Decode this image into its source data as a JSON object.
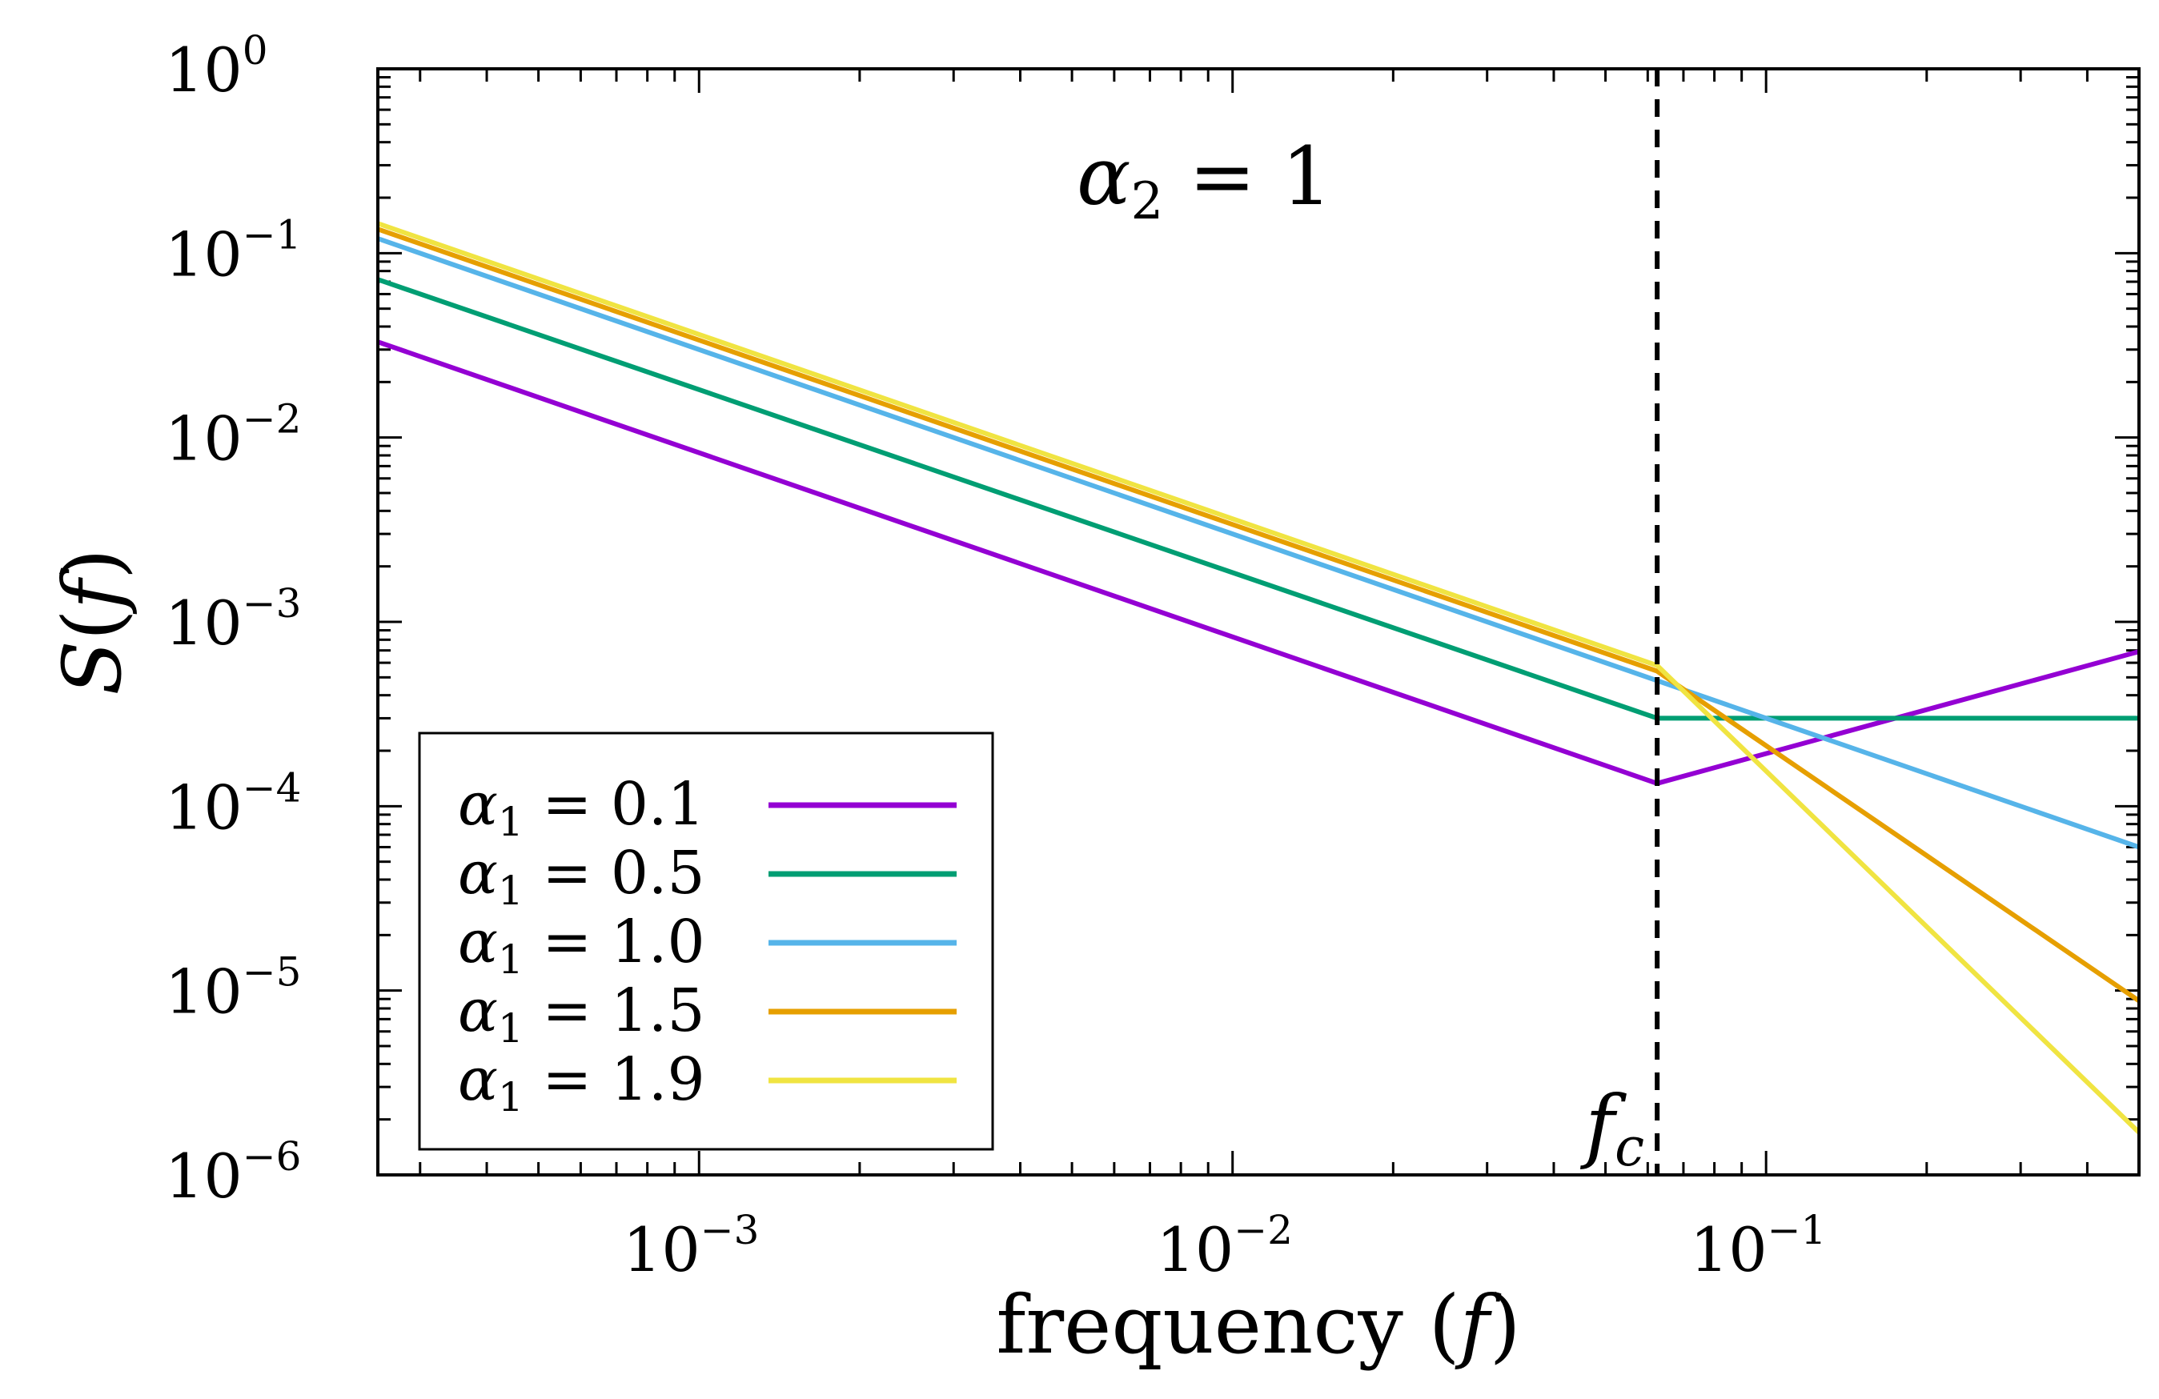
{
  "chart_data": {
    "type": "line",
    "title": "",
    "xlabel": "frequency (f)",
    "ylabel": "S(f)",
    "xscale": "log",
    "yscale": "log",
    "xlim": [
      0.00025,
      0.5
    ],
    "ylim": [
      1e-06,
      1
    ],
    "grid": false,
    "legend_position": "bottom-left",
    "x_ticks": [
      {
        "value": 0.001,
        "base": "10",
        "exp": "−3"
      },
      {
        "value": 0.01,
        "base": "10",
        "exp": "−2"
      },
      {
        "value": 0.1,
        "base": "10",
        "exp": "−1"
      }
    ],
    "y_ticks": [
      {
        "value": 1,
        "base": "10",
        "exp": "0"
      },
      {
        "value": 0.1,
        "base": "10",
        "exp": "−1"
      },
      {
        "value": 0.01,
        "base": "10",
        "exp": "−2"
      },
      {
        "value": 0.001,
        "base": "10",
        "exp": "−3"
      },
      {
        "value": 0.0001,
        "base": "10",
        "exp": "−4"
      },
      {
        "value": 1e-05,
        "base": "10",
        "exp": "−5"
      },
      {
        "value": 1e-06,
        "base": "10",
        "exp": "−6"
      }
    ],
    "cutoff": {
      "x": 0.0625,
      "label": "f",
      "label_sub": "c",
      "style": "dashed",
      "color": "#000000"
    },
    "annotations": [
      {
        "symbol": "α",
        "sub": "2",
        "text": " = 1"
      }
    ],
    "series": [
      {
        "symbol": "α",
        "sub": "1",
        "name": " = 0.1",
        "color": "#9400D3",
        "x": [
          0.00025,
          0.0625,
          0.5
        ],
        "y": [
          0.033,
          0.000133,
          0.00069
        ]
      },
      {
        "symbol": "α",
        "sub": "1",
        "name": " = 0.5",
        "color": "#009E73",
        "x": [
          0.00025,
          0.0625,
          0.5
        ],
        "y": [
          0.072,
          0.0003,
          0.0003
        ]
      },
      {
        "symbol": "α",
        "sub": "1",
        "name": " = 1.0",
        "color": "#56B4E9",
        "x": [
          0.00025,
          0.0625,
          0.5
        ],
        "y": [
          0.12,
          0.00048,
          6e-05
        ]
      },
      {
        "symbol": "α",
        "sub": "1",
        "name": " = 1.5",
        "color": "#E69F00",
        "x": [
          0.00025,
          0.0625,
          0.5
        ],
        "y": [
          0.135,
          0.00054,
          8.8e-06
        ]
      },
      {
        "symbol": "α",
        "sub": "1",
        "name": " = 1.9",
        "color": "#F0E442",
        "x": [
          0.00025,
          0.0625,
          0.5
        ],
        "y": [
          0.145,
          0.00058,
          1.7e-06
        ]
      }
    ]
  }
}
